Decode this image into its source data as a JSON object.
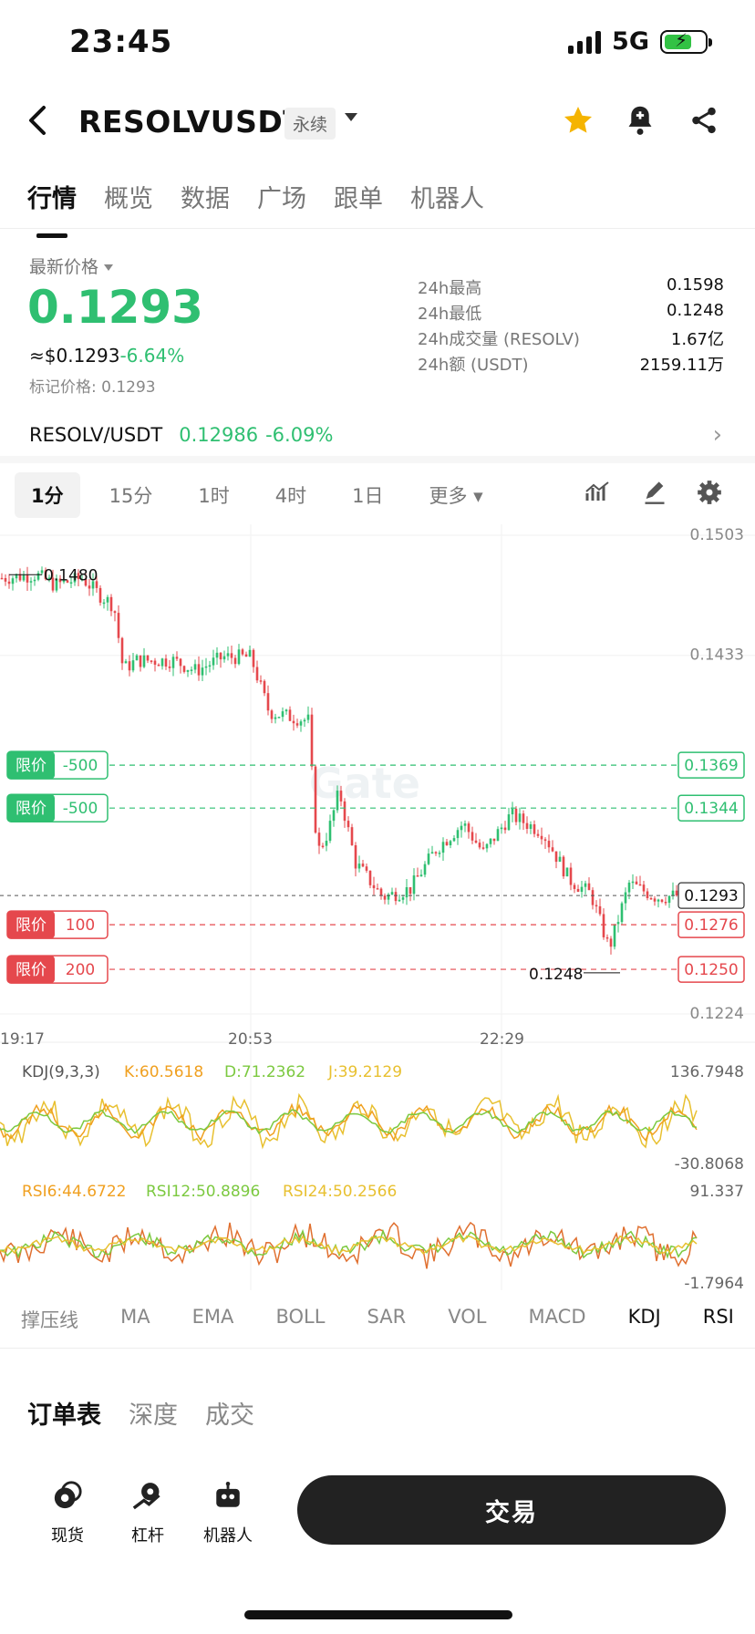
{
  "status": {
    "time": "23:45",
    "network": "5G"
  },
  "header": {
    "title": "RESOLVUSDT",
    "badge": "永续",
    "icons": [
      "back-arrow-icon",
      "star-icon",
      "bell-add-icon",
      "share-icon"
    ]
  },
  "main_tabs": [
    "行情",
    "概览",
    "数据",
    "广场",
    "跟单",
    "机器人"
  ],
  "price": {
    "latest_label": "最新价格",
    "latest": "0.1293",
    "usd": "≈$0.1293",
    "change": "-6.64%",
    "mark": "标记价格: 0.1293"
  },
  "stats": [
    {
      "k": "24h最高",
      "v": "0.1598"
    },
    {
      "k": "24h最低",
      "v": "0.1248"
    },
    {
      "k": "24h成交量 (RESOLV)",
      "v": "1.67亿"
    },
    {
      "k": "24h额 (USDT)",
      "v": "2159.11万"
    }
  ],
  "spot": {
    "pair": "RESOLV/USDT",
    "price": "0.12986",
    "change": "-6.09%"
  },
  "intervals": [
    "1分",
    "15分",
    "1时",
    "4时",
    "1日",
    "更多"
  ],
  "chart_data": {
    "type": "candlestick",
    "price_ticks": [
      "0.1503",
      "0.1433",
      "0.1224"
    ],
    "time_ticks": [
      "19:17",
      "20:53",
      "22:29"
    ],
    "high_marker": "0.1480",
    "low_marker": "0.1248",
    "current_price": "0.1293",
    "watermark": "Gate",
    "orders": [
      {
        "type": "限价",
        "qty": "-500",
        "price": "0.1369",
        "side": "sell"
      },
      {
        "type": "限价",
        "qty": "-500",
        "price": "0.1344",
        "side": "sell"
      },
      {
        "type": "限价",
        "qty": "100",
        "price": "0.1276",
        "side": "buy"
      },
      {
        "type": "限价",
        "qty": "200",
        "price": "0.1250",
        "side": "buy"
      }
    ],
    "kdj": {
      "label": "KDJ(9,3,3)",
      "k": "K:60.5618",
      "d": "D:71.2362",
      "j": "J:39.2129",
      "max": "136.7948",
      "min": "-30.8068"
    },
    "rsi": {
      "r6": "RSI6:44.6722",
      "r12": "RSI12:50.8896",
      "r24": "RSI24:50.2566",
      "max": "91.337",
      "min": "-1.7964"
    },
    "colors": {
      "up": "#2fbf71",
      "down": "#e5484d",
      "k": "#f0a020",
      "d": "#7cc940",
      "j": "#e8c030"
    }
  },
  "indicator_tabs": [
    "撑压线",
    "MA",
    "EMA",
    "BOLL",
    "SAR",
    "VOL",
    "MACD",
    "KDJ",
    "RSI"
  ],
  "book_tabs": [
    "订单表",
    "深度",
    "成交"
  ],
  "bottom": {
    "spot": "现货",
    "margin": "杠杆",
    "bot": "机器人",
    "trade": "交易"
  }
}
